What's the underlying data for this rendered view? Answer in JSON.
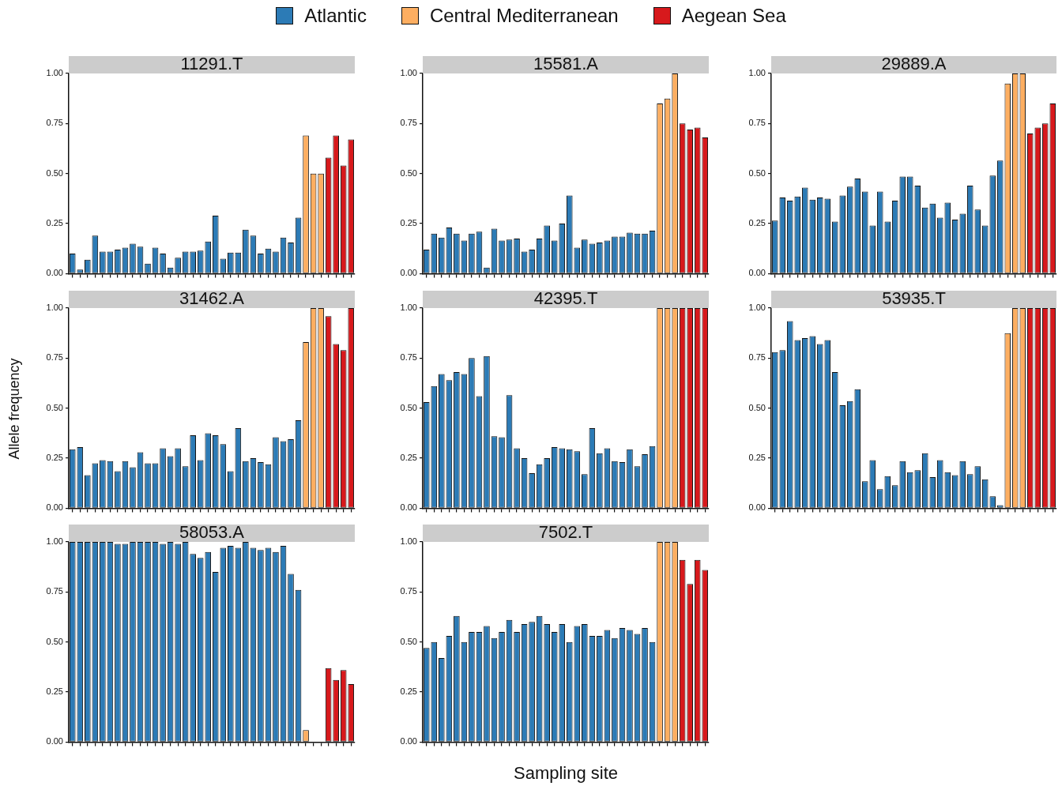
{
  "chart_data": [
    {
      "type": "bar",
      "title": "11291.T",
      "legend": "top",
      "tick_labels": "y",
      "ylim": [
        0,
        1
      ],
      "yticks": [
        {
          "value": 0,
          "label": "0.00"
        },
        {
          "value": 0.25,
          "label": "0.25"
        },
        {
          "value": 0.5,
          "label": "0.50"
        },
        {
          "value": 0.75,
          "label": "0.75"
        },
        {
          "value": 1,
          "label": "1.00"
        }
      ],
      "categories": [
        null,
        null,
        null,
        null,
        null,
        null,
        null,
        null,
        null,
        null,
        null,
        null,
        null,
        null,
        null,
        null,
        null,
        null,
        null,
        null,
        null,
        null,
        null,
        null,
        null,
        null,
        null,
        null,
        null,
        null,
        null,
        null,
        null,
        null,
        null,
        null,
        null,
        null
      ],
      "series": [
        {
          "name": "Atlantic",
          "color": "#2c7bb6",
          "values": [
            0.1,
            0.02,
            0.07,
            0.19,
            0.11,
            0.11,
            0.12,
            0.13,
            0.15,
            0.135,
            0.05,
            0.13,
            0.1,
            0.03,
            0.08,
            0.11,
            0.11,
            0.115,
            0.16,
            0.29,
            0.075,
            0.105,
            0.105,
            0.22,
            0.19,
            0.1,
            0.125,
            0.11,
            0.18,
            0.155,
            0.28,
            null,
            null,
            null,
            null,
            null,
            null,
            null
          ]
        },
        {
          "name": "Central Mediterranean",
          "color": "#fdae61",
          "values": [
            null,
            null,
            null,
            null,
            null,
            null,
            null,
            null,
            null,
            null,
            null,
            null,
            null,
            null,
            null,
            null,
            null,
            null,
            null,
            null,
            null,
            null,
            null,
            null,
            null,
            null,
            null,
            null,
            null,
            null,
            null,
            0.69,
            0.5,
            0.5,
            null,
            null,
            null,
            null
          ]
        },
        {
          "name": "Aegean Sea",
          "color": "#d7191c",
          "values": [
            null,
            null,
            null,
            null,
            null,
            null,
            null,
            null,
            null,
            null,
            null,
            null,
            null,
            null,
            null,
            null,
            null,
            null,
            null,
            null,
            null,
            null,
            null,
            null,
            null,
            null,
            null,
            null,
            null,
            null,
            null,
            null,
            null,
            null,
            0.58,
            0.69,
            0.54,
            0.67
          ]
        }
      ]
    },
    {
      "type": "bar",
      "title": "15581.A",
      "tick_labels": "y",
      "ylim": [
        0,
        1
      ],
      "yticks": [
        {
          "value": 0,
          "label": "0.00"
        },
        {
          "value": 0.25,
          "label": "0.25"
        },
        {
          "value": 0.5,
          "label": "0.50"
        },
        {
          "value": 0.75,
          "label": "0.75"
        },
        {
          "value": 1,
          "label": "1.00"
        }
      ],
      "categories": [
        null,
        null,
        null,
        null,
        null,
        null,
        null,
        null,
        null,
        null,
        null,
        null,
        null,
        null,
        null,
        null,
        null,
        null,
        null,
        null,
        null,
        null,
        null,
        null,
        null,
        null,
        null,
        null,
        null,
        null,
        null,
        null,
        null,
        null,
        null,
        null,
        null,
        null
      ],
      "series": [
        {
          "color": "#2c7bb6",
          "values": [
            0.12,
            0.2,
            0.18,
            0.23,
            0.2,
            0.165,
            0.2,
            0.21,
            0.03,
            0.225,
            0.165,
            0.17,
            0.175,
            0.11,
            0.12,
            0.175,
            0.24,
            0.165,
            0.25,
            0.39,
            0.13,
            0.17,
            0.15,
            0.155,
            0.165,
            0.185,
            0.185,
            0.205,
            0.2,
            0.2,
            0.215,
            null,
            null,
            null,
            null,
            null,
            null,
            null
          ]
        },
        {
          "color": "#fdae61",
          "values": [
            null,
            null,
            null,
            null,
            null,
            null,
            null,
            null,
            null,
            null,
            null,
            null,
            null,
            null,
            null,
            null,
            null,
            null,
            null,
            null,
            null,
            null,
            null,
            null,
            null,
            null,
            null,
            null,
            null,
            null,
            null,
            0.85,
            0.875,
            1.0,
            null,
            null,
            null,
            null
          ]
        },
        {
          "color": "#d7191c",
          "values": [
            null,
            null,
            null,
            null,
            null,
            null,
            null,
            null,
            null,
            null,
            null,
            null,
            null,
            null,
            null,
            null,
            null,
            null,
            null,
            null,
            null,
            null,
            null,
            null,
            null,
            null,
            null,
            null,
            null,
            null,
            null,
            null,
            null,
            null,
            0.75,
            0.72,
            0.73,
            0.68
          ]
        }
      ]
    },
    {
      "type": "bar",
      "title": "29889.A",
      "tick_labels": "y",
      "ylim": [
        0,
        1
      ],
      "yticks": [
        {
          "value": 0,
          "label": "0.00"
        },
        {
          "value": 0.25,
          "label": "0.25"
        },
        {
          "value": 0.5,
          "label": "0.50"
        },
        {
          "value": 0.75,
          "label": "0.75"
        },
        {
          "value": 1,
          "label": "1.00"
        }
      ],
      "categories": [
        null,
        null,
        null,
        null,
        null,
        null,
        null,
        null,
        null,
        null,
        null,
        null,
        null,
        null,
        null,
        null,
        null,
        null,
        null,
        null,
        null,
        null,
        null,
        null,
        null,
        null,
        null,
        null,
        null,
        null,
        null,
        null,
        null,
        null,
        null,
        null,
        null,
        null
      ],
      "series": [
        {
          "color": "#2c7bb6",
          "values": [
            0.265,
            0.38,
            0.365,
            0.385,
            0.43,
            0.37,
            0.38,
            0.375,
            0.26,
            0.39,
            0.435,
            0.475,
            0.41,
            0.24,
            0.41,
            0.26,
            0.365,
            0.485,
            0.485,
            0.44,
            0.33,
            0.35,
            0.28,
            0.355,
            0.27,
            0.3,
            0.44,
            0.32,
            0.24,
            0.49,
            0.565,
            null,
            null,
            null,
            null,
            null,
            null,
            null
          ]
        },
        {
          "color": "#fdae61",
          "values": [
            null,
            null,
            null,
            null,
            null,
            null,
            null,
            null,
            null,
            null,
            null,
            null,
            null,
            null,
            null,
            null,
            null,
            null,
            null,
            null,
            null,
            null,
            null,
            null,
            null,
            null,
            null,
            null,
            null,
            null,
            null,
            0.95,
            1.0,
            1.0,
            null,
            null,
            null,
            null
          ]
        },
        {
          "color": "#d7191c",
          "values": [
            null,
            null,
            null,
            null,
            null,
            null,
            null,
            null,
            null,
            null,
            null,
            null,
            null,
            null,
            null,
            null,
            null,
            null,
            null,
            null,
            null,
            null,
            null,
            null,
            null,
            null,
            null,
            null,
            null,
            null,
            null,
            null,
            null,
            null,
            0.7,
            0.73,
            0.75,
            0.85
          ]
        }
      ]
    },
    {
      "type": "bar",
      "title": "31462.A",
      "ylabel": "Allele frequency",
      "tick_labels": "y",
      "ylim": [
        0,
        1
      ],
      "yticks": [
        {
          "value": 0,
          "label": "0.00"
        },
        {
          "value": 0.25,
          "label": "0.25"
        },
        {
          "value": 0.5,
          "label": "0.50"
        },
        {
          "value": 0.75,
          "label": "0.75"
        },
        {
          "value": 1,
          "label": "1.00"
        }
      ],
      "categories": [
        null,
        null,
        null,
        null,
        null,
        null,
        null,
        null,
        null,
        null,
        null,
        null,
        null,
        null,
        null,
        null,
        null,
        null,
        null,
        null,
        null,
        null,
        null,
        null,
        null,
        null,
        null,
        null,
        null,
        null,
        null,
        null,
        null,
        null,
        null,
        null,
        null,
        null
      ],
      "series": [
        {
          "color": "#2c7bb6",
          "values": [
            0.295,
            0.305,
            0.165,
            0.225,
            0.24,
            0.235,
            0.185,
            0.235,
            0.205,
            0.28,
            0.225,
            0.225,
            0.3,
            0.26,
            0.3,
            0.21,
            0.365,
            0.24,
            0.375,
            0.365,
            0.32,
            0.185,
            0.4,
            0.235,
            0.25,
            0.23,
            0.22,
            0.355,
            0.335,
            0.345,
            0.44,
            null,
            null,
            null,
            null,
            null,
            null,
            null
          ]
        },
        {
          "color": "#fdae61",
          "values": [
            null,
            null,
            null,
            null,
            null,
            null,
            null,
            null,
            null,
            null,
            null,
            null,
            null,
            null,
            null,
            null,
            null,
            null,
            null,
            null,
            null,
            null,
            null,
            null,
            null,
            null,
            null,
            null,
            null,
            null,
            null,
            0.83,
            1.0,
            1.0,
            null,
            null,
            null,
            null
          ]
        },
        {
          "color": "#d7191c",
          "values": [
            null,
            null,
            null,
            null,
            null,
            null,
            null,
            null,
            null,
            null,
            null,
            null,
            null,
            null,
            null,
            null,
            null,
            null,
            null,
            null,
            null,
            null,
            null,
            null,
            null,
            null,
            null,
            null,
            null,
            null,
            null,
            null,
            null,
            null,
            0.96,
            0.82,
            0.79,
            1.0
          ]
        }
      ]
    },
    {
      "type": "bar",
      "title": "42395.T",
      "tick_labels": "y",
      "ylim": [
        0,
        1
      ],
      "yticks": [
        {
          "value": 0,
          "label": "0.00"
        },
        {
          "value": 0.25,
          "label": "0.25"
        },
        {
          "value": 0.5,
          "label": "0.50"
        },
        {
          "value": 0.75,
          "label": "0.75"
        },
        {
          "value": 1,
          "label": "1.00"
        }
      ],
      "categories": [
        null,
        null,
        null,
        null,
        null,
        null,
        null,
        null,
        null,
        null,
        null,
        null,
        null,
        null,
        null,
        null,
        null,
        null,
        null,
        null,
        null,
        null,
        null,
        null,
        null,
        null,
        null,
        null,
        null,
        null,
        null,
        null,
        null,
        null,
        null,
        null,
        null,
        null
      ],
      "series": [
        {
          "color": "#2c7bb6",
          "values": [
            0.53,
            0.61,
            0.67,
            0.64,
            0.68,
            0.67,
            0.75,
            0.56,
            0.76,
            0.36,
            0.355,
            0.565,
            0.3,
            0.25,
            0.175,
            0.22,
            0.25,
            0.305,
            0.3,
            0.295,
            0.285,
            0.17,
            0.4,
            0.275,
            0.3,
            0.235,
            0.23,
            0.295,
            0.21,
            0.27,
            0.31,
            null,
            null,
            null,
            null,
            null,
            null,
            null
          ]
        },
        {
          "color": "#fdae61",
          "values": [
            null,
            null,
            null,
            null,
            null,
            null,
            null,
            null,
            null,
            null,
            null,
            null,
            null,
            null,
            null,
            null,
            null,
            null,
            null,
            null,
            null,
            null,
            null,
            null,
            null,
            null,
            null,
            null,
            null,
            null,
            null,
            1.0,
            1.0,
            1.0,
            null,
            null,
            null,
            null
          ]
        },
        {
          "color": "#d7191c",
          "values": [
            null,
            null,
            null,
            null,
            null,
            null,
            null,
            null,
            null,
            null,
            null,
            null,
            null,
            null,
            null,
            null,
            null,
            null,
            null,
            null,
            null,
            null,
            null,
            null,
            null,
            null,
            null,
            null,
            null,
            null,
            null,
            null,
            null,
            null,
            1.0,
            1.0,
            1.0,
            1.0
          ]
        }
      ]
    },
    {
      "type": "bar",
      "title": "53935.T",
      "tick_labels": "y",
      "ylim": [
        0,
        1
      ],
      "yticks": [
        {
          "value": 0,
          "label": "0.00"
        },
        {
          "value": 0.25,
          "label": "0.25"
        },
        {
          "value": 0.5,
          "label": "0.50"
        },
        {
          "value": 0.75,
          "label": "0.75"
        },
        {
          "value": 1,
          "label": "1.00"
        }
      ],
      "categories": [
        null,
        null,
        null,
        null,
        null,
        null,
        null,
        null,
        null,
        null,
        null,
        null,
        null,
        null,
        null,
        null,
        null,
        null,
        null,
        null,
        null,
        null,
        null,
        null,
        null,
        null,
        null,
        null,
        null,
        null,
        null,
        null,
        null,
        null,
        null,
        null,
        null,
        null
      ],
      "series": [
        {
          "color": "#2c7bb6",
          "values": [
            0.78,
            0.79,
            0.935,
            0.84,
            0.85,
            0.86,
            0.82,
            0.84,
            0.68,
            0.515,
            0.535,
            0.595,
            0.135,
            0.24,
            0.095,
            0.16,
            0.115,
            0.235,
            0.18,
            0.19,
            0.275,
            0.155,
            0.24,
            0.18,
            0.165,
            0.235,
            0.17,
            0.21,
            0.145,
            0.06,
            0.015,
            null,
            null,
            null,
            null,
            null,
            null,
            null
          ]
        },
        {
          "color": "#fdae61",
          "values": [
            null,
            null,
            null,
            null,
            null,
            null,
            null,
            null,
            null,
            null,
            null,
            null,
            null,
            null,
            null,
            null,
            null,
            null,
            null,
            null,
            null,
            null,
            null,
            null,
            null,
            null,
            null,
            null,
            null,
            null,
            null,
            0.875,
            1.0,
            1.0,
            null,
            null,
            null,
            null
          ]
        },
        {
          "color": "#d7191c",
          "values": [
            null,
            null,
            null,
            null,
            null,
            null,
            null,
            null,
            null,
            null,
            null,
            null,
            null,
            null,
            null,
            null,
            null,
            null,
            null,
            null,
            null,
            null,
            null,
            null,
            null,
            null,
            null,
            null,
            null,
            null,
            null,
            null,
            null,
            null,
            1.0,
            1.0,
            1.0,
            1.0
          ]
        }
      ]
    },
    {
      "type": "bar",
      "title": "58053.A",
      "tick_labels": "y",
      "ylim": [
        0,
        1
      ],
      "yticks": [
        {
          "value": 0,
          "label": "0.00"
        },
        {
          "value": 0.25,
          "label": "0.25"
        },
        {
          "value": 0.5,
          "label": "0.50"
        },
        {
          "value": 0.75,
          "label": "0.75"
        },
        {
          "value": 1,
          "label": "1.00"
        }
      ],
      "categories": [
        null,
        null,
        null,
        null,
        null,
        null,
        null,
        null,
        null,
        null,
        null,
        null,
        null,
        null,
        null,
        null,
        null,
        null,
        null,
        null,
        null,
        null,
        null,
        null,
        null,
        null,
        null,
        null,
        null,
        null,
        null,
        null,
        null,
        null,
        null,
        null,
        null,
        null
      ],
      "series": [
        {
          "color": "#2c7bb6",
          "values": [
            1.0,
            1.0,
            1.0,
            1.0,
            1.0,
            1.0,
            0.99,
            0.99,
            1.0,
            1.0,
            1.0,
            1.0,
            0.99,
            1.0,
            0.99,
            1.0,
            0.94,
            0.92,
            0.95,
            0.85,
            0.97,
            0.98,
            0.97,
            1.0,
            0.97,
            0.96,
            0.97,
            0.95,
            0.98,
            0.84,
            0.76,
            null,
            null,
            null,
            null,
            null,
            null,
            null
          ]
        },
        {
          "color": "#fdae61",
          "values": [
            null,
            null,
            null,
            null,
            null,
            null,
            null,
            null,
            null,
            null,
            null,
            null,
            null,
            null,
            null,
            null,
            null,
            null,
            null,
            null,
            null,
            null,
            null,
            null,
            null,
            null,
            null,
            null,
            null,
            null,
            null,
            0.06,
            0,
            0,
            null,
            null,
            null,
            null
          ]
        },
        {
          "color": "#d7191c",
          "values": [
            null,
            null,
            null,
            null,
            null,
            null,
            null,
            null,
            null,
            null,
            null,
            null,
            null,
            null,
            null,
            null,
            null,
            null,
            null,
            null,
            null,
            null,
            null,
            null,
            null,
            null,
            null,
            null,
            null,
            null,
            null,
            null,
            null,
            null,
            0.37,
            0.31,
            0.36,
            0.29
          ]
        }
      ]
    },
    {
      "type": "bar",
      "title": "7502.T",
      "xlabel": "Sampling site",
      "tick_labels": "y",
      "ylim": [
        0,
        1
      ],
      "yticks": [
        {
          "value": 0,
          "label": "0.00"
        },
        {
          "value": 0.25,
          "label": "0.25"
        },
        {
          "value": 0.5,
          "label": "0.50"
        },
        {
          "value": 0.75,
          "label": "0.75"
        },
        {
          "value": 1,
          "label": "1.00"
        }
      ],
      "categories": [
        null,
        null,
        null,
        null,
        null,
        null,
        null,
        null,
        null,
        null,
        null,
        null,
        null,
        null,
        null,
        null,
        null,
        null,
        null,
        null,
        null,
        null,
        null,
        null,
        null,
        null,
        null,
        null,
        null,
        null,
        null,
        null,
        null,
        null,
        null,
        null,
        null,
        null
      ],
      "series": [
        {
          "color": "#2c7bb6",
          "values": [
            0.47,
            0.5,
            0.42,
            0.53,
            0.63,
            0.5,
            0.55,
            0.55,
            0.58,
            0.52,
            0.55,
            0.61,
            0.55,
            0.59,
            0.6,
            0.63,
            0.59,
            0.55,
            0.59,
            0.5,
            0.58,
            0.59,
            0.53,
            0.53,
            0.56,
            0.52,
            0.57,
            0.56,
            0.54,
            0.57,
            0.5,
            null,
            null,
            null,
            null,
            null,
            null,
            null
          ]
        },
        {
          "color": "#fdae61",
          "values": [
            null,
            null,
            null,
            null,
            null,
            null,
            null,
            null,
            null,
            null,
            null,
            null,
            null,
            null,
            null,
            null,
            null,
            null,
            null,
            null,
            null,
            null,
            null,
            null,
            null,
            null,
            null,
            null,
            null,
            null,
            null,
            1.0,
            1.0,
            1.0,
            null,
            null,
            null,
            null
          ]
        },
        {
          "color": "#d7191c",
          "values": [
            null,
            null,
            null,
            null,
            null,
            null,
            null,
            null,
            null,
            null,
            null,
            null,
            null,
            null,
            null,
            null,
            null,
            null,
            null,
            null,
            null,
            null,
            null,
            null,
            null,
            null,
            null,
            null,
            null,
            null,
            null,
            null,
            null,
            null,
            0.91,
            0.79,
            0.91,
            0.86
          ]
        }
      ]
    }
  ]
}
